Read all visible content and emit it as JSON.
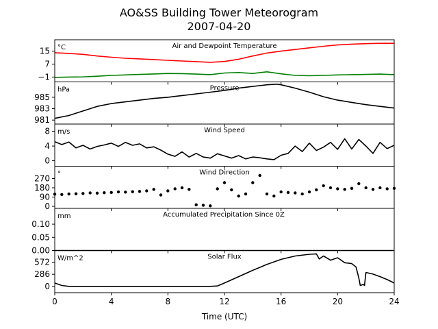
{
  "title_line1": "AO&SS Building Tower Meteorogram",
  "title_line2": "2007-04-20",
  "xlabel": "Time (UTC)",
  "chart_data": [
    {
      "type": "line",
      "title": "Air and Dewpoint Temperature",
      "unit": "°C",
      "xlim": [
        0,
        24
      ],
      "ylim": [
        -4,
        22
      ],
      "yticks": [
        -1,
        7,
        15
      ],
      "ytick_labels": [
        "−1",
        "7",
        "15"
      ],
      "series": [
        {
          "color": "#ff0000",
          "x": [
            0,
            1,
            2,
            3,
            4,
            5,
            6,
            7,
            8,
            9,
            10,
            11,
            12,
            13,
            14,
            15,
            16,
            17,
            18,
            19,
            20,
            21,
            22,
            23,
            24
          ],
          "y": [
            14,
            13.6,
            13,
            12,
            11.2,
            10.6,
            10.2,
            9.8,
            9.3,
            8.9,
            8.5,
            8.1,
            8.6,
            10,
            12,
            13.8,
            15,
            16,
            17,
            18,
            18.8,
            19.3,
            19.6,
            19.8,
            19.8
          ]
        },
        {
          "color": "#008000",
          "x": [
            0,
            1,
            2,
            3,
            4,
            5,
            6,
            7,
            8,
            9,
            10,
            11,
            12,
            13,
            14,
            15,
            16,
            17,
            18,
            19,
            20,
            21,
            22,
            23,
            24
          ],
          "y": [
            -1.2,
            -1,
            -0.9,
            -0.5,
            0,
            0.3,
            0.6,
            0.9,
            1.2,
            1.1,
            0.8,
            0.5,
            1.5,
            1.8,
            1.2,
            2.2,
            1,
            0,
            -0.2,
            0,
            0.3,
            0.5,
            0.6,
            0.8,
            0.5
          ]
        }
      ]
    },
    {
      "type": "line",
      "title": "Pressure",
      "unit": "hPa",
      "xlim": [
        0,
        24
      ],
      "ylim": [
        980.3,
        987.7
      ],
      "yticks": [
        981,
        983,
        985
      ],
      "ytick_labels": [
        "981",
        "983",
        "985"
      ],
      "series": [
        {
          "color": "#000000",
          "x": [
            0,
            1,
            2,
            3,
            4,
            5,
            6,
            7,
            8,
            9,
            10,
            11,
            12,
            13,
            14,
            15,
            15.7,
            16,
            17,
            18,
            19,
            20,
            21,
            22,
            23,
            24
          ],
          "y": [
            981.3,
            981.8,
            982.6,
            983.4,
            983.9,
            984.2,
            984.5,
            984.8,
            985.0,
            985.3,
            985.6,
            985.9,
            986.2,
            986.6,
            986.9,
            987.2,
            987.3,
            987.2,
            986.6,
            985.9,
            985.1,
            984.5,
            984.1,
            983.7,
            983.4,
            983.1
          ]
        }
      ]
    },
    {
      "type": "line",
      "title": "Wind Speed",
      "unit": "m/s",
      "xlim": [
        0,
        24
      ],
      "ylim": [
        -1.5,
        10
      ],
      "yticks": [
        0,
        4,
        8
      ],
      "ytick_labels": [
        "0",
        "4",
        "8"
      ],
      "series": [
        {
          "color": "#000000",
          "x": [
            0,
            0.5,
            1,
            1.5,
            2,
            2.5,
            3,
            3.5,
            4,
            4.5,
            5,
            5.5,
            6,
            6.5,
            7,
            7.5,
            8,
            8.5,
            9,
            9.5,
            10,
            10.5,
            11,
            11.5,
            12,
            12.5,
            13,
            13.5,
            14,
            14.5,
            15,
            15.5,
            16,
            16.5,
            17,
            17.5,
            18,
            18.5,
            19,
            19.5,
            20,
            20.5,
            21,
            21.5,
            22,
            22.5,
            23,
            23.5,
            24
          ],
          "y": [
            5.2,
            4.4,
            5.1,
            3.5,
            4.2,
            3.2,
            3.9,
            4.3,
            4.8,
            3.9,
            5.0,
            4.2,
            4.6,
            3.5,
            3.8,
            2.9,
            1.8,
            1.2,
            2.4,
            1.0,
            2.0,
            1.0,
            0.7,
            1.9,
            1.3,
            0.7,
            1.4,
            0.5,
            1.0,
            0.8,
            0.5,
            0.3,
            1.5,
            2.0,
            4.0,
            2.5,
            4.8,
            2.8,
            3.7,
            5.0,
            3.1,
            6.0,
            3.2,
            5.8,
            4.0,
            2.0,
            5.0,
            3.3,
            4.2
          ]
        }
      ]
    },
    {
      "type": "scatter",
      "title": "Wind Direction",
      "unit": "°",
      "xlim": [
        0,
        24
      ],
      "ylim": [
        -20,
        390
      ],
      "yticks": [
        0,
        90,
        180,
        270
      ],
      "ytick_labels": [
        "0",
        "90",
        "180",
        "270"
      ],
      "series": [
        {
          "color": "#000000",
          "x": [
            0,
            0.5,
            1,
            1.5,
            2,
            2.5,
            3,
            3.5,
            4,
            4.5,
            5,
            5.5,
            6,
            6.5,
            7,
            7.5,
            8,
            8.5,
            9,
            9.5,
            10,
            10.5,
            11,
            11.5,
            12,
            12.5,
            13,
            13.5,
            14,
            14.5,
            15,
            15.5,
            16,
            16.5,
            17,
            17.5,
            18,
            18.5,
            19,
            19.5,
            20,
            20.5,
            21,
            21.5,
            22,
            22.5,
            23,
            23.5,
            24
          ],
          "y": [
            118,
            115,
            120,
            122,
            125,
            130,
            128,
            132,
            135,
            140,
            138,
            142,
            145,
            150,
            165,
            110,
            150,
            170,
            180,
            165,
            15,
            10,
            5,
            170,
            230,
            160,
            100,
            120,
            230,
            300,
            120,
            100,
            140,
            135,
            130,
            120,
            140,
            160,
            200,
            180,
            170,
            165,
            175,
            220,
            180,
            165,
            180,
            170,
            175
          ]
        }
      ]
    },
    {
      "type": "line",
      "title": "Accumulated Precipitation Since 0Z",
      "unit": "mm",
      "xlim": [
        0,
        24
      ],
      "ylim": [
        0,
        0.16
      ],
      "yticks": [
        0.0,
        0.05,
        0.1
      ],
      "ytick_labels": [
        "0.00",
        "0.05",
        "0.10"
      ],
      "series": [
        {
          "color": "#000000",
          "x": [
            0,
            24
          ],
          "y": [
            0,
            0
          ]
        }
      ]
    },
    {
      "type": "line",
      "title": "Solar Flux",
      "unit": "W/m^2",
      "xlim": [
        0,
        24
      ],
      "ylim": [
        -150,
        850
      ],
      "yticks": [
        0,
        286,
        572
      ],
      "ytick_labels": [
        "0",
        "286",
        "572"
      ],
      "series": [
        {
          "color": "#000000",
          "x": [
            0,
            0.5,
            1,
            2,
            4,
            6,
            8,
            10,
            11,
            11.5,
            12,
            13,
            14,
            15,
            16,
            17,
            18,
            18.5,
            18.7,
            19,
            19.5,
            20,
            20.5,
            21,
            21.3,
            21.5,
            21.6,
            21.7,
            21.8,
            21.9,
            22,
            22.5,
            23,
            23.5,
            24
          ],
          "y": [
            80,
            20,
            0,
            0,
            0,
            0,
            0,
            0,
            0,
            10,
            80,
            230,
            380,
            520,
            640,
            720,
            760,
            770,
            650,
            720,
            620,
            680,
            560,
            540,
            460,
            200,
            20,
            30,
            50,
            20,
            330,
            290,
            230,
            160,
            80
          ]
        }
      ]
    }
  ]
}
